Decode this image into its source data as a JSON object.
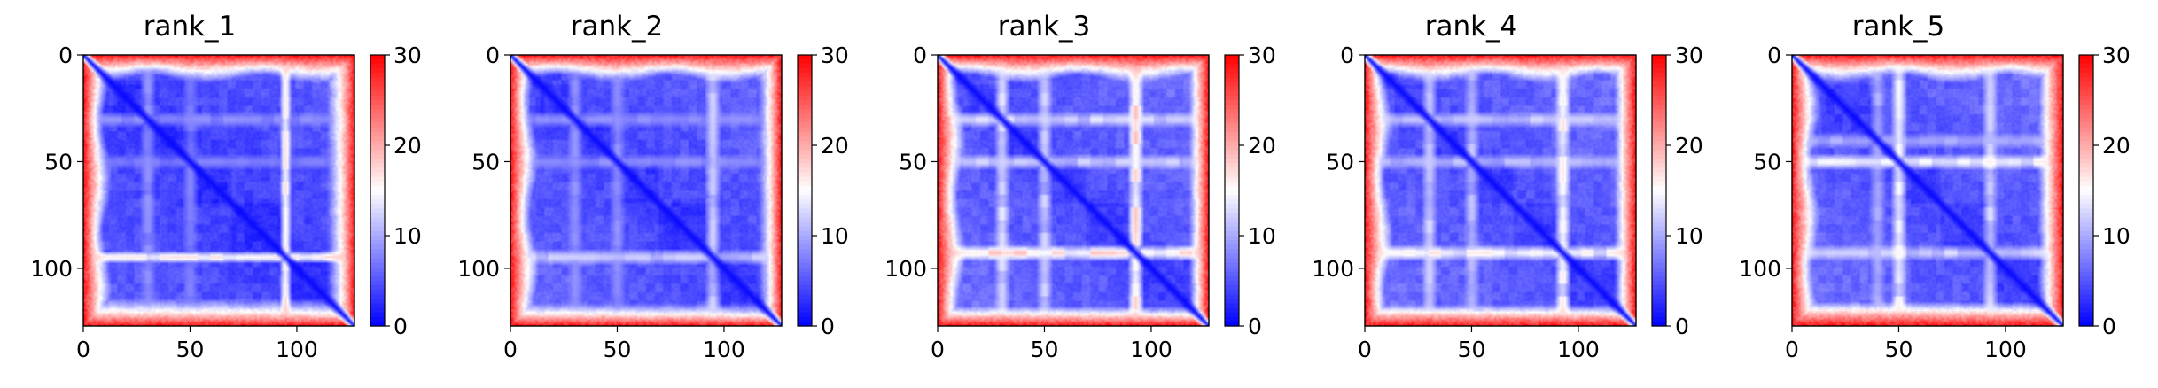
{
  "figure": {
    "colormap": {
      "name": "bwr",
      "colors": [
        "#0000ff",
        "#ffffff",
        "#ff0000"
      ]
    }
  },
  "chart_data": [
    {
      "type": "heatmap",
      "title": "rank_1",
      "matrix_size": 128,
      "xlim": [
        0,
        127
      ],
      "ylim": [
        127,
        0
      ],
      "x_ticks": [
        0,
        50,
        100
      ],
      "y_ticks": [
        0,
        50,
        100
      ],
      "colorbar": {
        "range": [
          0,
          30
        ],
        "ticks": [
          0,
          10,
          20,
          30
        ]
      },
      "background_distance": 3,
      "edge_distance": 28,
      "diagonal_distance": 0.5,
      "domain_boundaries": [
        14,
        30,
        50,
        70,
        95
      ],
      "bright_bands": [
        {
          "index": 95,
          "value": 18,
          "width": 1.5
        },
        {
          "index": 30,
          "value": 9,
          "width": 2
        },
        {
          "index": 50,
          "value": 8,
          "width": 2
        }
      ]
    },
    {
      "type": "heatmap",
      "title": "rank_2",
      "matrix_size": 128,
      "xlim": [
        0,
        127
      ],
      "ylim": [
        127,
        0
      ],
      "x_ticks": [
        0,
        50,
        100
      ],
      "y_ticks": [
        0,
        50,
        100
      ],
      "colorbar": {
        "range": [
          0,
          30
        ],
        "ticks": [
          0,
          10,
          20,
          30
        ]
      },
      "background_distance": 3.5,
      "edge_distance": 28,
      "diagonal_distance": 0.5,
      "domain_boundaries": [
        14,
        30,
        50,
        70,
        95
      ],
      "bright_bands": [
        {
          "index": 95,
          "value": 13,
          "width": 2
        },
        {
          "index": 30,
          "value": 9,
          "width": 2
        },
        {
          "index": 50,
          "value": 9,
          "width": 2
        }
      ]
    },
    {
      "type": "heatmap",
      "title": "rank_3",
      "matrix_size": 128,
      "xlim": [
        0,
        127
      ],
      "ylim": [
        127,
        0
      ],
      "x_ticks": [
        0,
        50,
        100
      ],
      "y_ticks": [
        0,
        50,
        100
      ],
      "colorbar": {
        "range": [
          0,
          30
        ],
        "ticks": [
          0,
          10,
          20,
          30
        ]
      },
      "background_distance": 4,
      "edge_distance": 28,
      "diagonal_distance": 0.5,
      "domain_boundaries": [
        14,
        30,
        50,
        70,
        93
      ],
      "bright_bands": [
        {
          "index": 93,
          "value": 19,
          "width": 2
        },
        {
          "index": 30,
          "value": 14,
          "width": 2
        },
        {
          "index": 50,
          "value": 13,
          "width": 2
        }
      ]
    },
    {
      "type": "heatmap",
      "title": "rank_4",
      "matrix_size": 128,
      "xlim": [
        0,
        127
      ],
      "ylim": [
        127,
        0
      ],
      "x_ticks": [
        0,
        50,
        100
      ],
      "y_ticks": [
        0,
        50,
        100
      ],
      "colorbar": {
        "range": [
          0,
          30
        ],
        "ticks": [
          0,
          10,
          20,
          30
        ]
      },
      "background_distance": 4,
      "edge_distance": 28,
      "diagonal_distance": 0.5,
      "domain_boundaries": [
        14,
        30,
        50,
        70,
        93
      ],
      "bright_bands": [
        {
          "index": 93,
          "value": 17,
          "width": 2
        },
        {
          "index": 30,
          "value": 13,
          "width": 2
        },
        {
          "index": 50,
          "value": 12,
          "width": 2
        }
      ]
    },
    {
      "type": "heatmap",
      "title": "rank_5",
      "matrix_size": 128,
      "xlim": [
        0,
        127
      ],
      "ylim": [
        127,
        0
      ],
      "x_ticks": [
        0,
        50,
        100
      ],
      "y_ticks": [
        0,
        50,
        100
      ],
      "colorbar": {
        "range": [
          0,
          30
        ],
        "ticks": [
          0,
          10,
          20,
          30
        ]
      },
      "background_distance": 4,
      "edge_distance": 28,
      "diagonal_distance": 0.5,
      "domain_boundaries": [
        14,
        40,
        50,
        70,
        93
      ],
      "bright_bands": [
        {
          "index": 93,
          "value": 14,
          "width": 2
        },
        {
          "index": 50,
          "value": 16,
          "width": 2
        },
        {
          "index": 40,
          "value": 11,
          "width": 2
        }
      ]
    }
  ]
}
